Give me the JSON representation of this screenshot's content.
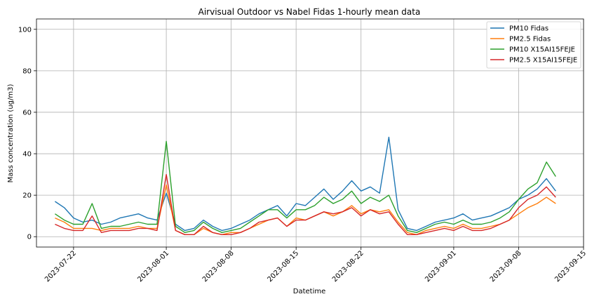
{
  "chart_data": {
    "type": "line",
    "title": "Airvisual Outdoor vs Nabel Fidas 1-hourly mean data",
    "xlabel": "Datetime",
    "ylabel": "Mass concentration (ug/m3)",
    "xlim": [
      "2023-07-18",
      "2023-09-15"
    ],
    "ylim": [
      -5,
      105
    ],
    "grid": true,
    "legend_position": "top-right",
    "x_ticks": [
      "2023-07-22",
      "2023-08-01",
      "2023-08-08",
      "2023-08-15",
      "2023-08-22",
      "2023-09-01",
      "2023-09-08",
      "2023-09-15"
    ],
    "y_ticks": [
      "0",
      "20",
      "40",
      "60",
      "80",
      "100"
    ],
    "x_tick_values": [
      "2023-07-22",
      "2023-08-01",
      "2023-08-08",
      "2023-08-15",
      "2023-08-22",
      "2023-09-01",
      "2023-09-08",
      "2023-09-15"
    ],
    "y_tick_values": [
      0,
      20,
      40,
      60,
      80,
      100
    ],
    "x": [
      "2023-07-20",
      "2023-07-21",
      "2023-07-22",
      "2023-07-23",
      "2023-07-24",
      "2023-07-25",
      "2023-07-26",
      "2023-07-27",
      "2023-07-28",
      "2023-07-29",
      "2023-07-30",
      "2023-07-31",
      "2023-08-01",
      "2023-08-02",
      "2023-08-03",
      "2023-08-04",
      "2023-08-05",
      "2023-08-06",
      "2023-08-07",
      "2023-08-08",
      "2023-08-09",
      "2023-08-10",
      "2023-08-11",
      "2023-08-12",
      "2023-08-13",
      "2023-08-14",
      "2023-08-15",
      "2023-08-16",
      "2023-08-17",
      "2023-08-18",
      "2023-08-19",
      "2023-08-20",
      "2023-08-21",
      "2023-08-22",
      "2023-08-23",
      "2023-08-24",
      "2023-08-25",
      "2023-08-26",
      "2023-08-27",
      "2023-08-28",
      "2023-08-29",
      "2023-08-30",
      "2023-08-31",
      "2023-09-01",
      "2023-09-02",
      "2023-09-03",
      "2023-09-04",
      "2023-09-05",
      "2023-09-06",
      "2023-09-07",
      "2023-09-08",
      "2023-09-09",
      "2023-09-10",
      "2023-09-11",
      "2023-09-12"
    ],
    "series": [
      {
        "name": "PM10 Fidas",
        "color": "#1f77b4",
        "values": [
          17,
          14,
          9,
          7,
          8,
          6,
          7,
          9,
          10,
          11,
          9,
          8,
          21,
          6,
          3,
          4,
          8,
          5,
          3,
          4,
          6,
          8,
          11,
          13,
          15,
          10,
          16,
          15,
          19,
          23,
          18,
          22,
          27,
          22,
          24,
          21,
          48,
          13,
          4,
          3,
          5,
          7,
          8,
          9,
          11,
          8,
          9,
          10,
          12,
          14,
          18,
          20,
          23,
          28,
          22
        ]
      },
      {
        "name": "PM2.5 Fidas",
        "color": "#ff7f0e",
        "values": [
          9,
          7,
          4,
          4,
          4,
          3,
          4,
          4,
          4,
          5,
          4,
          4,
          25,
          3,
          1,
          1,
          4,
          2,
          1,
          2,
          2,
          4,
          6,
          8,
          9,
          5,
          9,
          8,
          10,
          12,
          10,
          12,
          15,
          11,
          13,
          12,
          13,
          7,
          2,
          1,
          3,
          4,
          5,
          4,
          6,
          4,
          4,
          5,
          6,
          8,
          11,
          14,
          16,
          19,
          16
        ]
      },
      {
        "name": "PM10 X15AI15FEJE",
        "color": "#2ca02c",
        "values": [
          11,
          8,
          6,
          6,
          16,
          4,
          5,
          5,
          6,
          7,
          6,
          6,
          46,
          5,
          2,
          3,
          7,
          4,
          2,
          3,
          4,
          7,
          10,
          13,
          13,
          9,
          13,
          13,
          15,
          19,
          16,
          18,
          22,
          16,
          19,
          17,
          20,
          10,
          3,
          2,
          4,
          6,
          7,
          6,
          8,
          6,
          6,
          7,
          9,
          12,
          18,
          23,
          26,
          36,
          29
        ]
      },
      {
        "name": "PM2.5 X15AI15FEJE",
        "color": "#d62728",
        "values": [
          6,
          4,
          3,
          3,
          10,
          2,
          3,
          3,
          3,
          4,
          4,
          3,
          30,
          3,
          1,
          1,
          5,
          2,
          1,
          1,
          2,
          4,
          7,
          8,
          9,
          5,
          8,
          8,
          10,
          12,
          11,
          12,
          14,
          10,
          13,
          11,
          12,
          6,
          1,
          1,
          2,
          3,
          4,
          3,
          5,
          3,
          3,
          4,
          6,
          8,
          14,
          18,
          20,
          24,
          19
        ]
      }
    ]
  }
}
